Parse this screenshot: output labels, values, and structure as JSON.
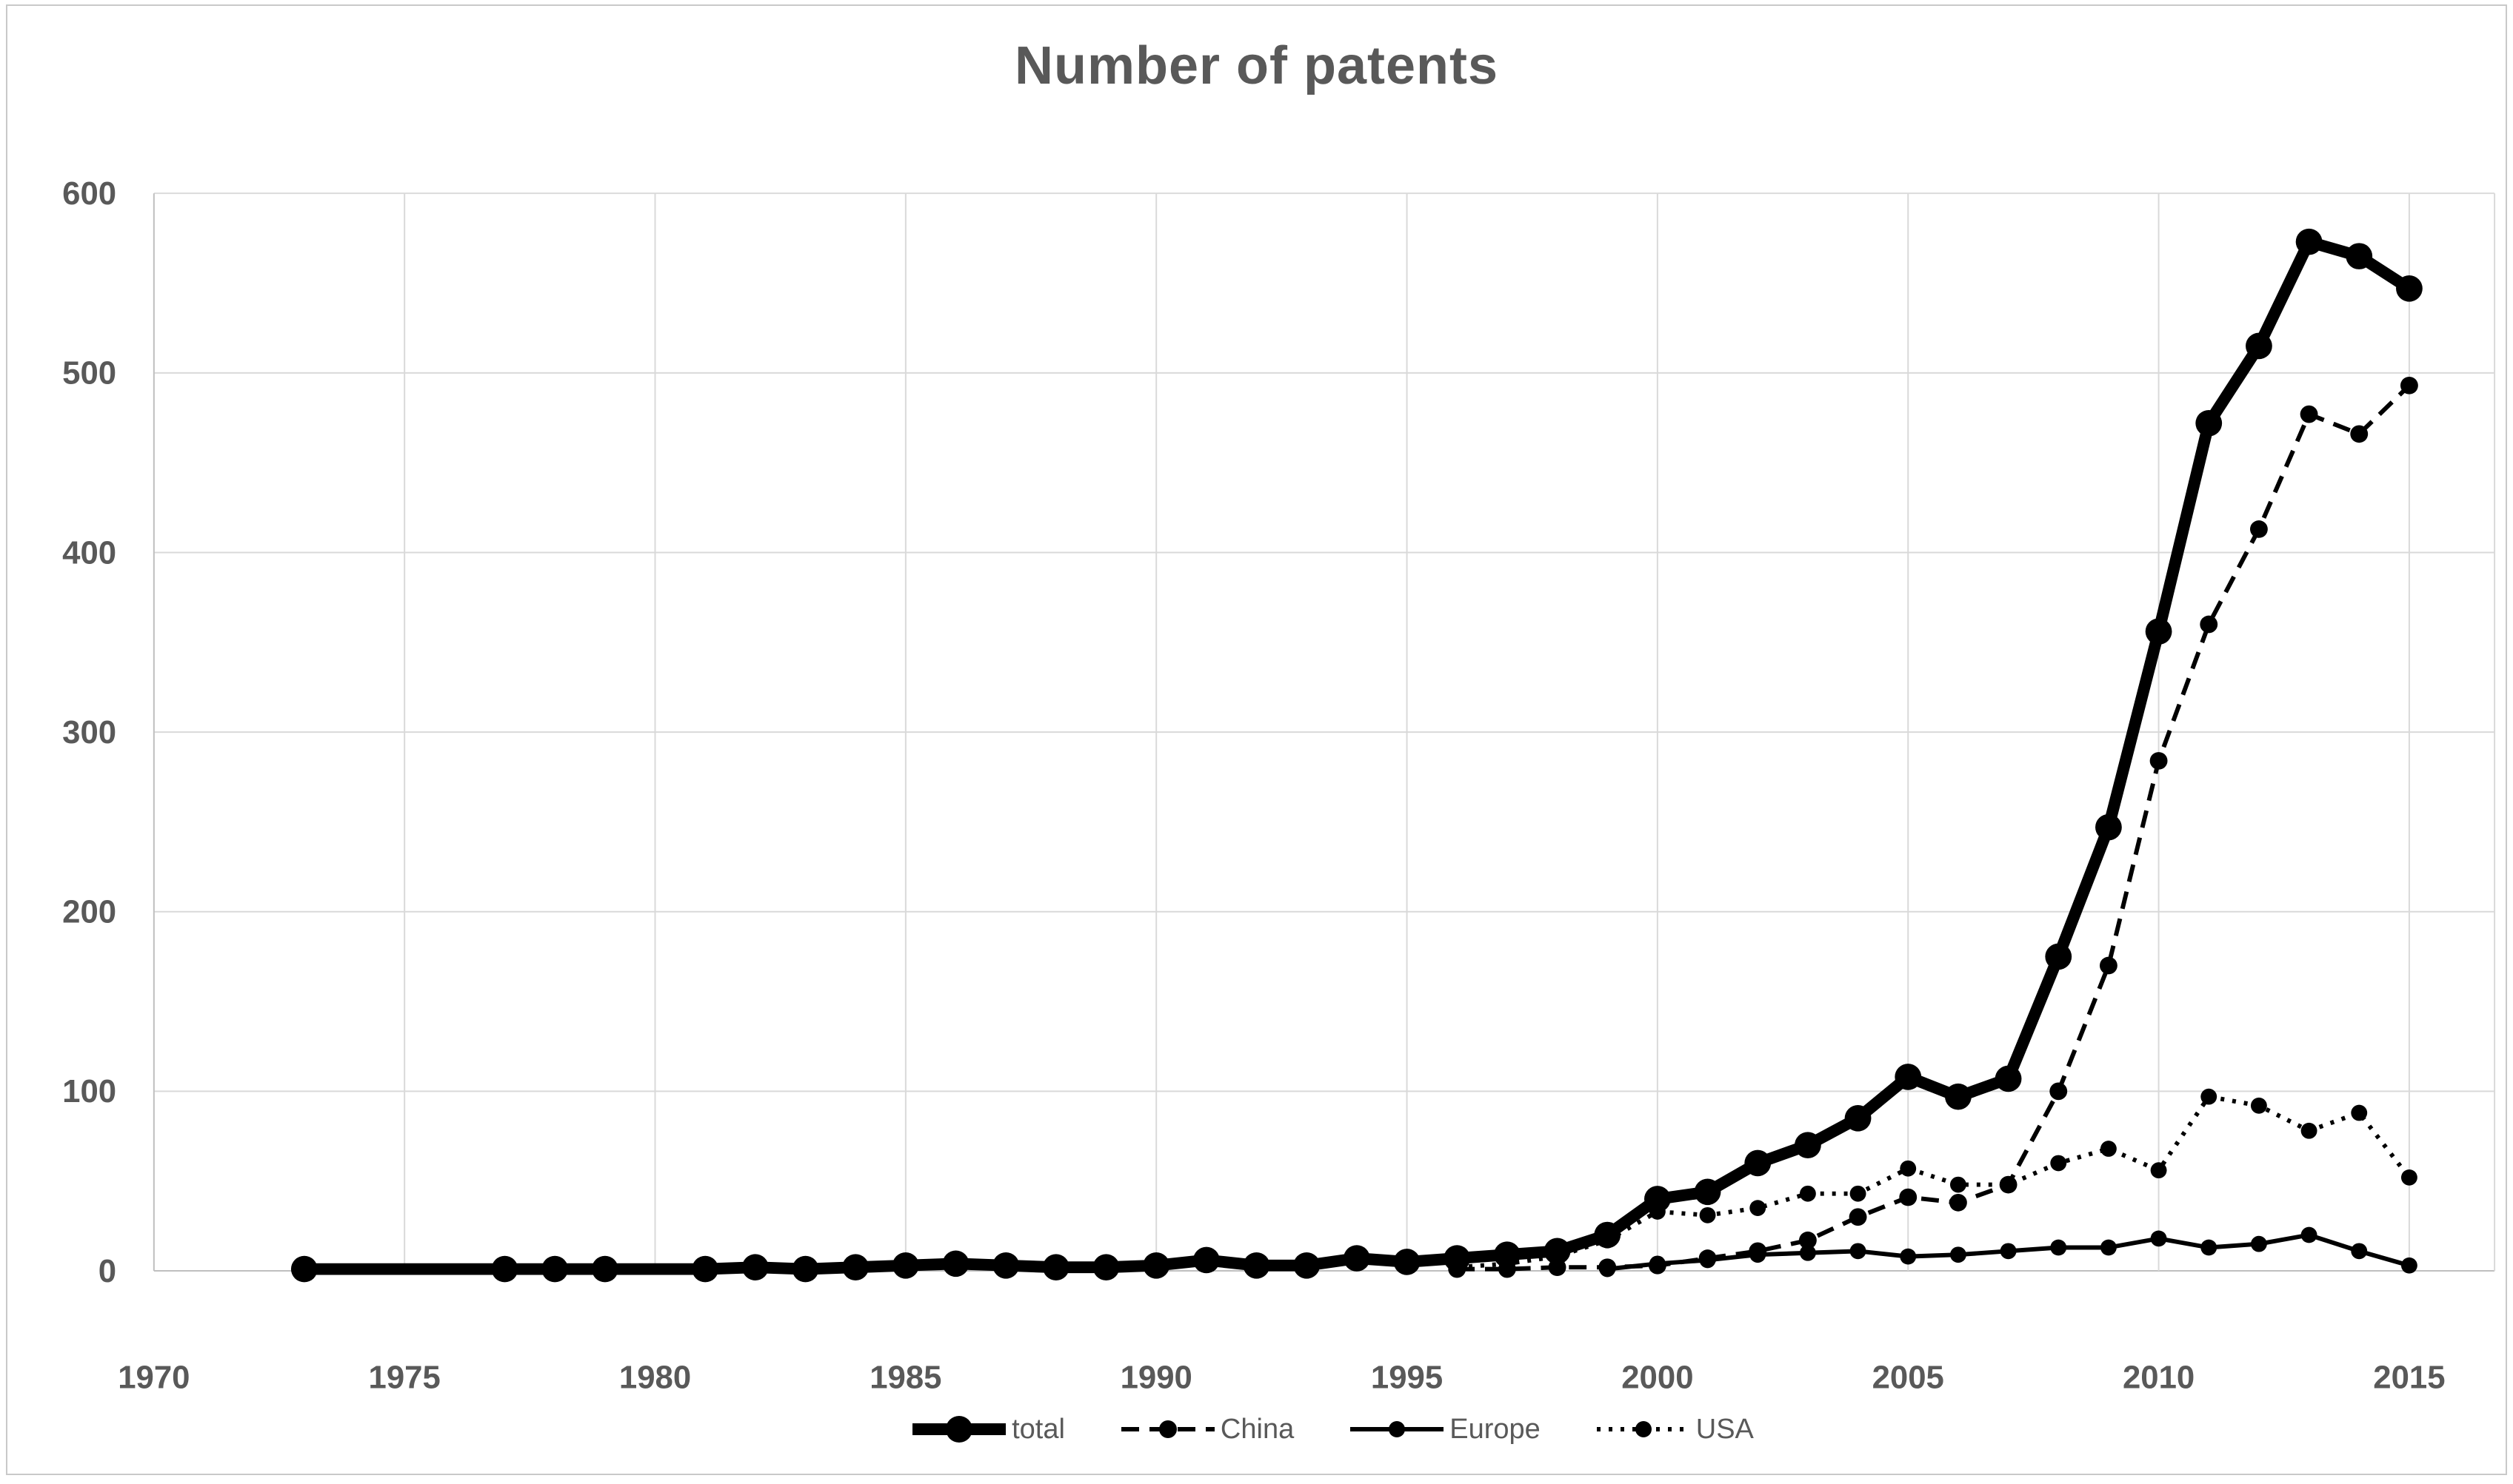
{
  "chart": {
    "title": "Number of patents",
    "colors": {
      "series": "#000000",
      "gridline": "#d9d9d9",
      "axis_line": "#bfbfbf",
      "axis_text": "#595959",
      "legend_text": "#595959",
      "background": "#ffffff",
      "frame_border": "#c9c9c9"
    }
  },
  "chart_data": {
    "type": "line",
    "title": "Number of patents",
    "xlabel": "",
    "ylabel": "",
    "grid": true,
    "legend_position": "bottom",
    "xlim": [
      1970,
      2016.7
    ],
    "ylim": [
      0,
      600
    ],
    "x_ticks": [
      1970,
      1975,
      1980,
      1985,
      1990,
      1995,
      2000,
      2005,
      2010,
      2015
    ],
    "y_ticks": [
      0,
      100,
      200,
      300,
      400,
      500,
      600
    ],
    "series": [
      {
        "name": "total",
        "style": "solid",
        "line_width": 16,
        "marker_radius": 18,
        "years": [
          1973,
          1977,
          1978,
          1979,
          1981,
          1982,
          1983,
          1984,
          1985,
          1986,
          1987,
          1988,
          1989,
          1990,
          1991,
          1992,
          1993,
          1994,
          1995,
          1996,
          1997,
          1998,
          1999,
          2000,
          2001,
          2002,
          2003,
          2004,
          2005,
          2006,
          2007,
          2008,
          2009,
          2010,
          2011,
          2012,
          2013,
          2014,
          2015
        ],
        "values": [
          1,
          1,
          1,
          1,
          1,
          2,
          1,
          2,
          3,
          4,
          3,
          2,
          2,
          3,
          6,
          3,
          3,
          7,
          5,
          7,
          9,
          11,
          20,
          40,
          44,
          60,
          70,
          85,
          108,
          97,
          107,
          175,
          247,
          356,
          472,
          515,
          573,
          565,
          547
        ]
      },
      {
        "name": "China",
        "style": "dashed",
        "line_width": 6,
        "marker_radius": 12,
        "years": [
          1996,
          1997,
          1998,
          1999,
          2000,
          2001,
          2002,
          2003,
          2004,
          2005,
          2006,
          2007,
          2008,
          2009,
          2010,
          2011,
          2012,
          2013,
          2014,
          2015
        ],
        "values": [
          1,
          1,
          2,
          2,
          3,
          7,
          11,
          17,
          30,
          41,
          38,
          48,
          100,
          170,
          284,
          360,
          413,
          477,
          466,
          493
        ]
      },
      {
        "name": "Europe",
        "style": "solid",
        "line_width": 6,
        "marker_radius": 11,
        "years": [
          1999,
          2000,
          2001,
          2002,
          2003,
          2004,
          2005,
          2006,
          2007,
          2008,
          2009,
          2010,
          2011,
          2012,
          2013,
          2014,
          2015
        ],
        "values": [
          1,
          4,
          6,
          9,
          10,
          11,
          8,
          9,
          11,
          13,
          13,
          18,
          13,
          15,
          20,
          11,
          3
        ]
      },
      {
        "name": "USA",
        "style": "dotted",
        "line_width": 6,
        "marker_radius": 11,
        "years": [
          1996,
          1997,
          1998,
          1999,
          2000,
          2001,
          2002,
          2003,
          2004,
          2005,
          2006,
          2007,
          2008,
          2009,
          2010,
          2011,
          2012,
          2013,
          2014,
          2015
        ],
        "values": [
          2,
          4,
          8,
          17,
          33,
          31,
          35,
          43,
          43,
          57,
          48,
          48,
          60,
          68,
          56,
          97,
          92,
          78,
          88,
          52
        ]
      }
    ]
  }
}
